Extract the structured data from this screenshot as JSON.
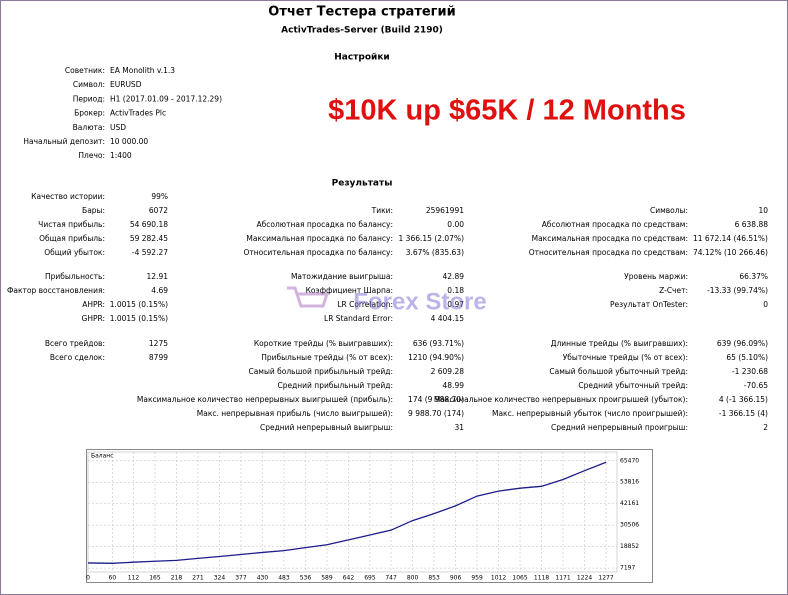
{
  "header": {
    "title": "Отчет Тестера стратегий",
    "subtitle": "ActivTrades-Server (Build 2190)"
  },
  "settings": {
    "heading": "Настройки",
    "rows": [
      {
        "label": "Советник:",
        "value": "EA Monolith v.1.3"
      },
      {
        "label": "Символ:",
        "value": "EURUSD"
      },
      {
        "label": "Период:",
        "value": "H1 (2017.01.09 - 2017.12.29)"
      },
      {
        "label": "Брокер:",
        "value": "ActivTrades Plc"
      },
      {
        "label": "Валюта:",
        "value": "USD"
      },
      {
        "label": "Начальный депозит:",
        "value": "10 000.00"
      },
      {
        "label": "Плечо:",
        "value": "1:400"
      }
    ]
  },
  "banner": "$10K up $65K / 12 Months",
  "watermark": "Forex Store",
  "results": {
    "heading": "Результаты",
    "groups": [
      {
        "rows": [
          [
            {
              "label": "Качество истории:",
              "value": "99%"
            },
            null,
            null
          ],
          [
            {
              "label": "Бары:",
              "value": "6072"
            },
            {
              "label": "Тики:",
              "value": "25961991"
            },
            {
              "label": "Символы:",
              "value": "10"
            }
          ],
          [
            {
              "label": "Чистая прибыль:",
              "value": "54 690.18"
            },
            {
              "label": "Абсолютная просадка по балансу:",
              "value": "0.00"
            },
            {
              "label": "Абсолютная просадка по средствам:",
              "value": "6 638.88"
            }
          ],
          [
            {
              "label": "Общая прибыль:",
              "value": "59 282.45"
            },
            {
              "label": "Максимальная просадка по балансу:",
              "value": "1 366.15 (2.07%)"
            },
            {
              "label": "Максимальная просадка по средствам:",
              "value": "11 672.14 (46.51%)"
            }
          ],
          [
            {
              "label": "Общий убыток:",
              "value": "-4 592.27"
            },
            {
              "label": "Относительная просадка по балансу:",
              "value": "3.67% (835.63)"
            },
            {
              "label": "Относительная просадка по средствам:",
              "value": "74.12% (10 266.46)"
            }
          ]
        ]
      },
      {
        "rows": [
          [
            {
              "label": "Прибыльность:",
              "value": "12.91"
            },
            {
              "label": "Матожидание выигрыша:",
              "value": "42.89"
            },
            {
              "label": "Уровень маржи:",
              "value": "66.37%"
            }
          ],
          [
            {
              "label": "Фактор восстановления:",
              "value": "4.69"
            },
            {
              "label": "Коэффициент Шарпа:",
              "value": "0.18"
            },
            {
              "label": "Z-Счет:",
              "value": "-13.33 (99.74%)"
            }
          ],
          [
            {
              "label": "AHPR:",
              "value": "1.0015 (0.15%)"
            },
            {
              "label": "LR Correlation:",
              "value": "0.97"
            },
            {
              "label": "Результат OnTester:",
              "value": "0"
            }
          ],
          [
            {
              "label": "GHPR:",
              "value": "1.0015 (0.15%)"
            },
            {
              "label": "LR Standard Error:",
              "value": "4 404.15"
            },
            null
          ]
        ]
      },
      {
        "rows": [
          [
            {
              "label": "Всего трейдов:",
              "value": "1275"
            },
            {
              "label": "Короткие трейды (% выигравших):",
              "value": "636 (93.71%)"
            },
            {
              "label": "Длинные трейды (% выигравших):",
              "value": "639 (96.09%)"
            }
          ],
          [
            {
              "label": "Всего сделок:",
              "value": "8799"
            },
            {
              "label": "Прибыльные трейды (% от всех):",
              "value": "1210 (94.90%)"
            },
            {
              "label": "Убыточные трейды (% от всех):",
              "value": "65 (5.10%)"
            }
          ],
          [
            null,
            {
              "label": "Самый большой прибыльный трейд:",
              "value": "2 609.28"
            },
            {
              "label": "Самый большой убыточный трейд:",
              "value": "-1 230.68"
            }
          ],
          [
            null,
            {
              "label": "Средний прибыльный трейд:",
              "value": "48.99"
            },
            {
              "label": "Средний убыточный трейд:",
              "value": "-70.65"
            }
          ],
          [
            null,
            {
              "label": "Максимальное количество непрерывных выигрышей (прибыль):",
              "value": "174 (9 988.70)"
            },
            {
              "label": "Максимальное количество непрерывных проигрышей (убыток):",
              "value": "4 (-1 366.15)"
            }
          ],
          [
            null,
            {
              "label": "Макс. непрерывная прибыль (число выигрышей):",
              "value": "9 988.70 (174)"
            },
            {
              "label": "Макс. непрерывный убыток (число проигрышей):",
              "value": "-1 366.15 (4)"
            }
          ],
          [
            null,
            {
              "label": "Средний непрерывный выигрыш:",
              "value": "31"
            },
            {
              "label": "Средний непрерывный проигрыш:",
              "value": "2"
            }
          ]
        ]
      }
    ]
  },
  "chart_data": {
    "type": "line",
    "title": "Баланс",
    "x": [
      0,
      60,
      112,
      165,
      218,
      271,
      324,
      377,
      430,
      483,
      536,
      589,
      642,
      695,
      747,
      800,
      853,
      906,
      959,
      1012,
      1065,
      1118,
      1171,
      1224,
      1277
    ],
    "series": [
      {
        "name": "Баланс",
        "color": "#1c1c8c",
        "values": [
          10000,
          9800,
          10400,
          10900,
          11400,
          12500,
          13500,
          14600,
          15700,
          16700,
          18300,
          19900,
          22500,
          25200,
          27800,
          33000,
          36800,
          41000,
          46300,
          49000,
          50600,
          51600,
          55300,
          60100,
          64690
        ]
      }
    ],
    "xlim": [
      0,
      1304
    ],
    "xticks": [
      0,
      60,
      112,
      165,
      218,
      271,
      324,
      377,
      430,
      483,
      536,
      589,
      642,
      695,
      747,
      800,
      853,
      906,
      959,
      1012,
      1065,
      1118,
      1171,
      1224,
      1277
    ],
    "ylim": [
      5080,
      70240
    ],
    "yticks": [
      7197,
      18852,
      30506,
      42161,
      53816,
      65470
    ],
    "grid": true
  }
}
